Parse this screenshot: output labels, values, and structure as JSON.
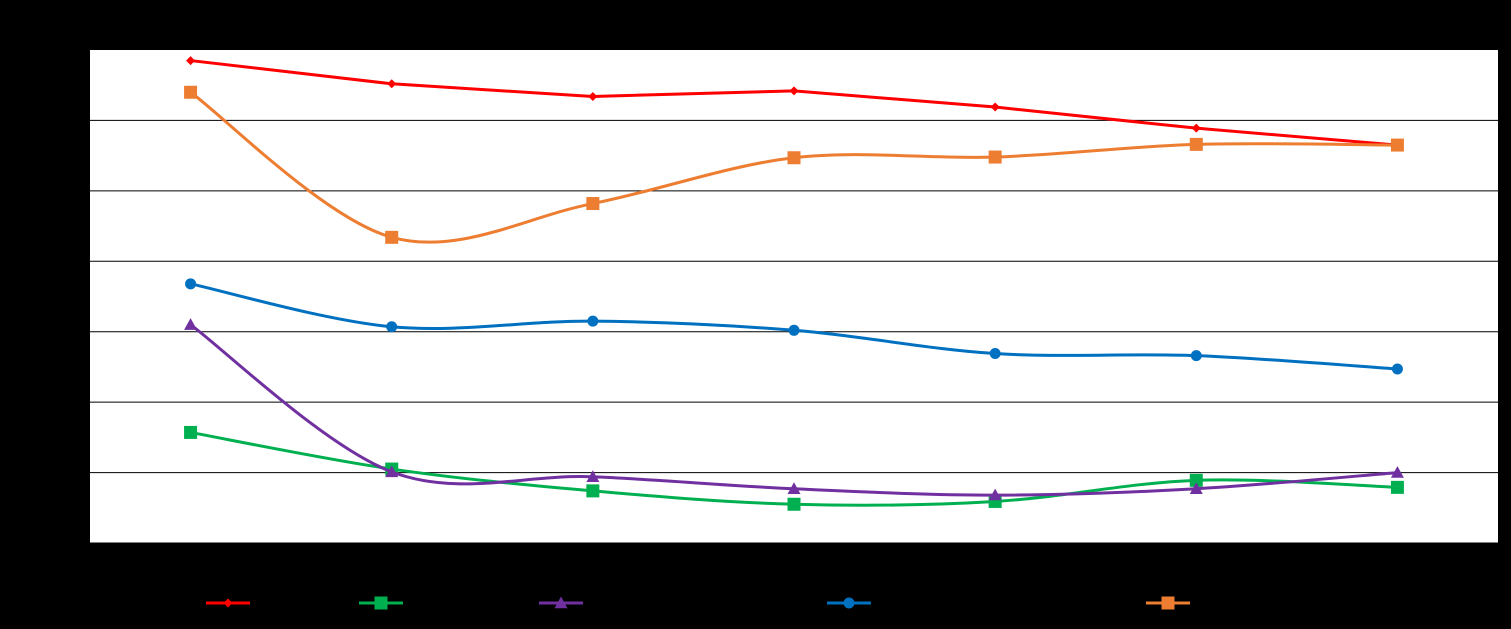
{
  "chart_data": {
    "type": "line",
    "title": "",
    "xlabel": "",
    "ylabel": "",
    "categories": [
      "",
      "",
      "",
      "",
      "",
      "",
      ""
    ],
    "ylim": [
      0,
      70
    ],
    "grid": true,
    "legend_position": "bottom",
    "plot_background": "#ffffff",
    "page_background": "#000000",
    "gridline_color": "#000000",
    "series": [
      {
        "name": "",
        "color": "#ff0000",
        "marker": "diamond",
        "smooth": false,
        "values": [
          68.5,
          65.2,
          63.4,
          64.2,
          61.9,
          58.9,
          56.5
        ]
      },
      {
        "name": "",
        "color": "#00b050",
        "marker": "square",
        "smooth": true,
        "values": [
          15.7,
          10.5,
          7.4,
          5.5,
          5.9,
          8.9,
          7.9
        ]
      },
      {
        "name": "",
        "color": "#7030a0",
        "marker": "triangle",
        "smooth": true,
        "values": [
          31.0,
          10.1,
          9.4,
          7.7,
          6.8,
          7.7,
          10.0
        ]
      },
      {
        "name": "",
        "color": "#0070c0",
        "marker": "circle",
        "smooth": true,
        "values": [
          36.8,
          30.7,
          31.5,
          30.2,
          26.9,
          26.6,
          24.7
        ]
      },
      {
        "name": "",
        "color": "#ed7d31",
        "marker": "square",
        "smooth": true,
        "values": [
          64.0,
          43.4,
          48.2,
          54.7,
          54.8,
          56.6,
          56.5
        ]
      }
    ]
  }
}
